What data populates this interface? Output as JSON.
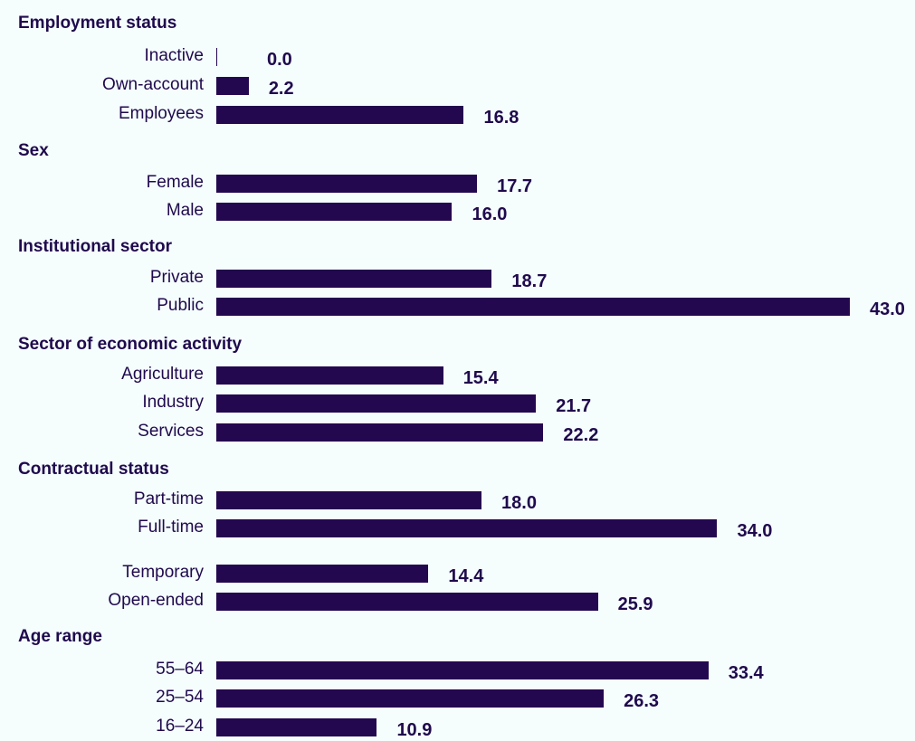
{
  "colors": {
    "bar": "#24084f",
    "text": "#1f0a4d",
    "background": "#f5fdfd"
  },
  "chart_data": {
    "type": "bar",
    "orientation": "horizontal",
    "xlim": [
      0,
      43.0
    ],
    "grid": false,
    "groups": [
      {
        "title": "Employment status",
        "categories": [
          "Inactive",
          "Own-account",
          "Employees"
        ],
        "values": [
          0.0,
          2.2,
          16.8
        ],
        "labels": [
          "0.0",
          "2.2",
          "16.8"
        ]
      },
      {
        "title": "Sex",
        "categories": [
          "Female",
          "Male"
        ],
        "values": [
          17.7,
          16.0
        ],
        "labels": [
          "17.7",
          "16.0"
        ]
      },
      {
        "title": "Institutional sector",
        "categories": [
          "Private",
          "Public"
        ],
        "values": [
          18.7,
          43.0
        ],
        "labels": [
          "18.7",
          "43.0"
        ]
      },
      {
        "title": "Sector of economic activity",
        "categories": [
          "Agriculture",
          "Industry",
          "Services"
        ],
        "values": [
          15.4,
          21.7,
          22.2
        ],
        "labels": [
          "15.4",
          "21.7",
          "22.2"
        ]
      },
      {
        "title": "Contractual status",
        "categories": [
          "Part-time",
          "Full-time",
          "Temporary",
          "Open-ended"
        ],
        "values": [
          18.0,
          34.0,
          14.4,
          25.9
        ],
        "labels": [
          "18.0",
          "34.0",
          "14.4",
          "25.9"
        ]
      },
      {
        "title": "Age range",
        "categories": [
          "55–64",
          "25–54",
          "16–24"
        ],
        "values": [
          33.4,
          26.3,
          10.9
        ],
        "labels": [
          "33.4",
          "26.3",
          "10.9"
        ]
      }
    ]
  }
}
